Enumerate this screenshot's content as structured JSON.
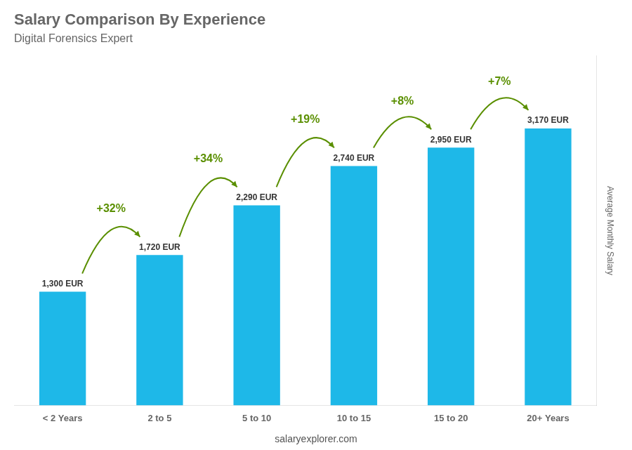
{
  "chart_data": {
    "type": "bar",
    "title": "Salary Comparison By Experience",
    "subtitle": "Digital Forensics Expert",
    "ylabel": "Average Monthly Salary",
    "categories": [
      "< 2 Years",
      "2 to 5",
      "5 to 10",
      "10 to 15",
      "15 to 20",
      "20+ Years"
    ],
    "values": [
      1300,
      1720,
      2290,
      2740,
      2950,
      3170
    ],
    "value_labels": [
      "1,300 EUR",
      "1,720 EUR",
      "2,290 EUR",
      "2,740 EUR",
      "2,950 EUR",
      "3,170 EUR"
    ],
    "data_labels": true,
    "color": "#1eb8e8",
    "ylim": [
      0,
      4000
    ],
    "tick_labels": "x",
    "grid": false,
    "annotations": [
      "+32%",
      "+34%",
      "+19%",
      "+8%",
      "+7%"
    ],
    "footer": "salaryexplorer.com"
  }
}
